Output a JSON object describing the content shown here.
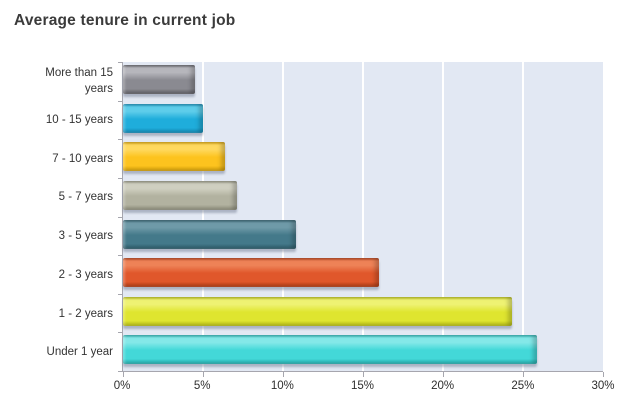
{
  "header": {
    "title": "Average tenure in current job",
    "title_color": "#3b3b3b"
  },
  "chart_data": {
    "type": "bar",
    "orientation": "horizontal",
    "title": "Average tenure in current job",
    "xlabel": "",
    "ylabel": "",
    "unit": "%",
    "categories": [
      "More than 15 years",
      "10 - 15 years",
      "7 - 10 years",
      "5 - 7 years",
      "3 - 5 years",
      "2 - 3 years",
      "1 - 2 years",
      "Under 1 year"
    ],
    "values": [
      4.5,
      5,
      6.4,
      7.1,
      10.8,
      16,
      24.3,
      25.9
    ],
    "xlim": [
      0,
      30
    ],
    "x_ticks": [
      "0%",
      "5%",
      "10%",
      "15%",
      "20%",
      "25%",
      "30%"
    ],
    "grid": "vertical white gridlines at 5% steps",
    "legend": "none",
    "plot_background": "#e2e8f3",
    "grid_color": "#ffffff",
    "axis_color": "#a6a6ae",
    "label_color": "#333333",
    "bar_colors": [
      {
        "name": "gray",
        "light": "#b6b6bc",
        "main": "#8a8a91",
        "dark": "#5e5e65"
      },
      {
        "name": "cyan-blue",
        "light": "#5ecdea",
        "main": "#1faddb",
        "dark": "#1387b2"
      },
      {
        "name": "gold",
        "light": "#ffd95f",
        "main": "#fdc31e",
        "dark": "#cf9c08"
      },
      {
        "name": "beige",
        "light": "#cfcfc0",
        "main": "#b2b2a0",
        "dark": "#8c8c7a"
      },
      {
        "name": "teal",
        "light": "#6f9aa8",
        "main": "#44798a",
        "dark": "#2d5a68"
      },
      {
        "name": "orange",
        "light": "#ee8257",
        "main": "#e0572b",
        "dark": "#ab3a14"
      },
      {
        "name": "yellow-green",
        "light": "#eef273",
        "main": "#dfe52f",
        "dark": "#b1b714"
      },
      {
        "name": "turquoise",
        "light": "#84e8e8",
        "main": "#43d8d8",
        "dark": "#25a9a9"
      }
    ]
  }
}
